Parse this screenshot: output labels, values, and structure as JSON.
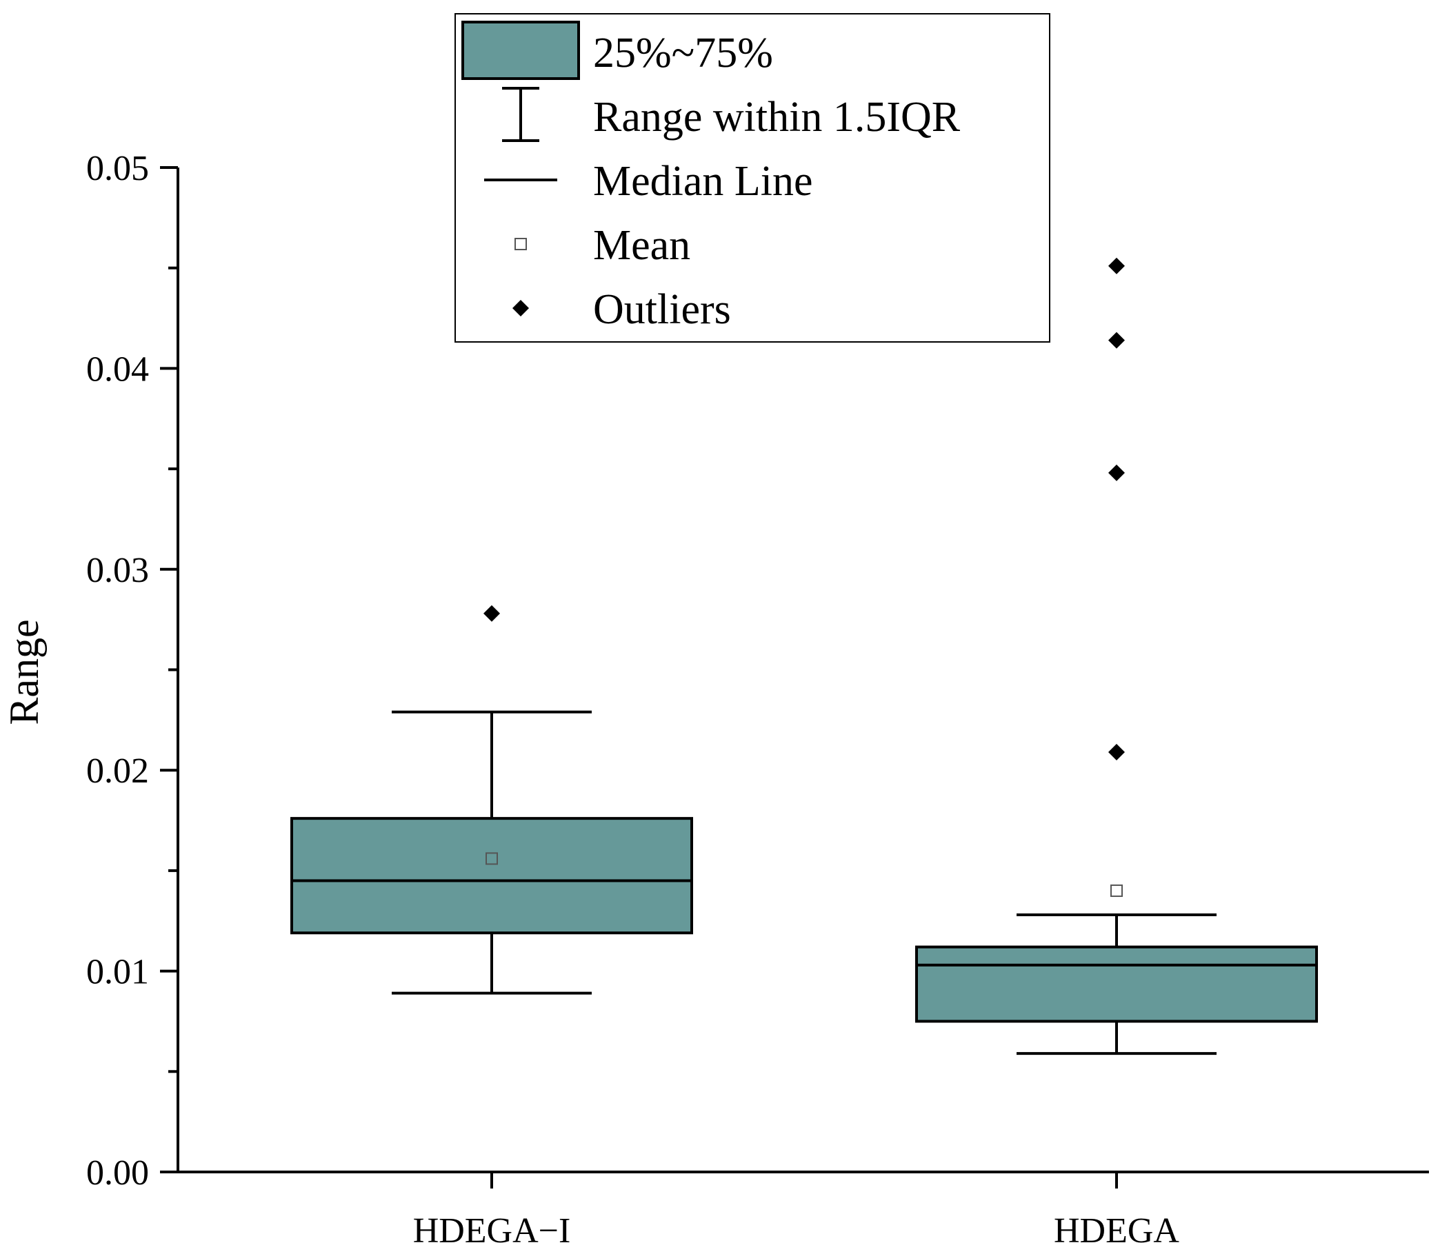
{
  "chart_data": {
    "type": "box",
    "title": "",
    "xlabel": "",
    "ylabel": "Range",
    "ylim": [
      0,
      0.05
    ],
    "yticks": [
      "0.00",
      "0.01",
      "0.02",
      "0.03",
      "0.04",
      "0.05"
    ],
    "ytick_values": [
      0,
      0.01,
      0.02,
      0.03,
      0.04,
      0.05
    ],
    "grid": false,
    "legend_position": "top-center",
    "categories": [
      "HDEGA−I",
      "HDEGA"
    ],
    "series": [
      {
        "name": "HDEGA−I",
        "whisker_low": 0.0089,
        "q1": 0.0119,
        "median": 0.0145,
        "q3": 0.0176,
        "whisker_high": 0.0229,
        "mean": 0.0156,
        "outliers": [
          0.0278
        ]
      },
      {
        "name": "HDEGA",
        "whisker_low": 0.0059,
        "q1": 0.0075,
        "median": 0.0103,
        "q3": 0.0112,
        "whisker_high": 0.0128,
        "mean": 0.014,
        "outliers": [
          0.0209,
          0.0348,
          0.0414,
          0.0451
        ]
      }
    ],
    "legend": [
      {
        "key": "box",
        "label": "25%~75%"
      },
      {
        "key": "whisker",
        "label": "Range within 1.5IQR"
      },
      {
        "key": "median",
        "label": "Median Line"
      },
      {
        "key": "mean",
        "label": "Mean"
      },
      {
        "key": "outlier",
        "label": "Outliers"
      }
    ],
    "colors": {
      "box_fill": "#669999",
      "stroke": "#000000",
      "background": "#ffffff"
    }
  }
}
